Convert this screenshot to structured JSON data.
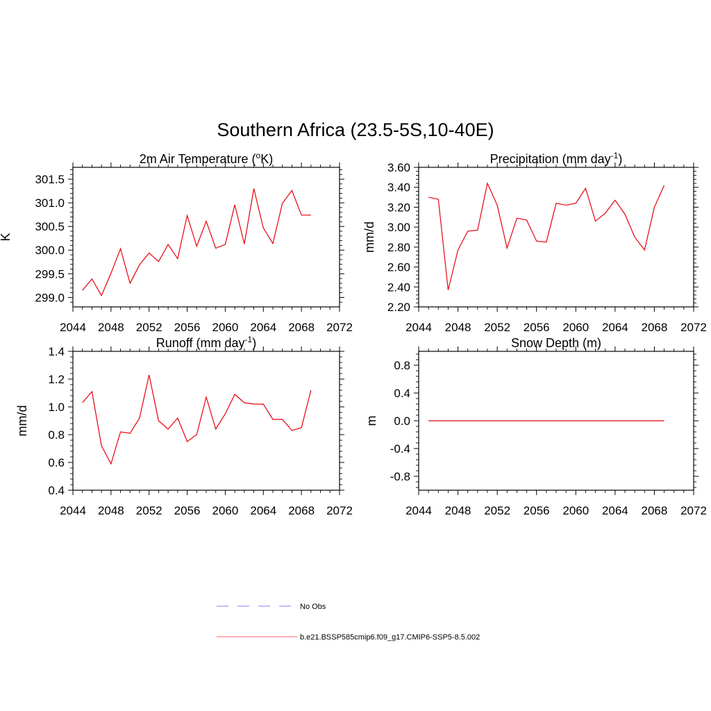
{
  "title": "Southern Africa (23.5-5S,10-40E)",
  "legend": [
    {
      "label": "No Obs",
      "color": "#9999ff",
      "style": "dashed"
    },
    {
      "label": "b.e21.BSSP585cmip6.f09_g17.CMIP6-SSP5-8.5.002",
      "color": "#ff8080",
      "style": "solid"
    }
  ],
  "chart_data": [
    {
      "type": "line",
      "title_main": "2m Air Temperature (",
      "title_sup_pre": "o",
      "title_after": "K)",
      "ylabel": "K",
      "xlim": [
        2044,
        2072
      ],
      "ylim": [
        298.8,
        301.75
      ],
      "xticks": [
        "2044",
        "2048",
        "2052",
        "2056",
        "2060",
        "2064",
        "2068",
        "2072"
      ],
      "yticks": [
        "299.0",
        "299.5",
        "300.0",
        "300.5",
        "301.0",
        "301.5"
      ],
      "x": [
        2045,
        2046,
        2047,
        2048,
        2049,
        2050,
        2051,
        2052,
        2053,
        2054,
        2055,
        2056,
        2057,
        2058,
        2059,
        2060,
        2061,
        2062,
        2063,
        2064,
        2065,
        2066,
        2067,
        2068,
        2069
      ],
      "series": [
        {
          "color": "#e8000b",
          "values": [
            299.15,
            299.39,
            299.04,
            299.51,
            300.03,
            299.3,
            299.69,
            299.94,
            299.76,
            300.12,
            299.82,
            300.73,
            300.08,
            300.61,
            300.04,
            300.12,
            300.96,
            300.13,
            301.3,
            300.47,
            300.14,
            300.99,
            301.26,
            300.74,
            300.74
          ]
        }
      ]
    },
    {
      "type": "line",
      "title_main": "Precipitation (mm day",
      "title_sup": "-1",
      "title_after": ")",
      "ylabel": "mm/d",
      "xlim": [
        2044,
        2072
      ],
      "ylim": [
        2.2,
        3.6
      ],
      "xticks": [
        "2044",
        "2048",
        "2052",
        "2056",
        "2060",
        "2064",
        "2068",
        "2072"
      ],
      "yticks": [
        "2.20",
        "2.40",
        "2.60",
        "2.80",
        "3.00",
        "3.20",
        "3.40",
        "3.60"
      ],
      "x": [
        2045,
        2046,
        2047,
        2048,
        2049,
        2050,
        2051,
        2052,
        2053,
        2054,
        2055,
        2056,
        2057,
        2058,
        2059,
        2060,
        2061,
        2062,
        2063,
        2064,
        2065,
        2066,
        2067,
        2068,
        2069
      ],
      "series": [
        {
          "color": "#e8000b",
          "values": [
            3.3,
            3.28,
            2.37,
            2.77,
            2.96,
            2.97,
            3.44,
            3.22,
            2.79,
            3.09,
            3.07,
            2.86,
            2.85,
            3.24,
            3.22,
            3.24,
            3.39,
            3.06,
            3.14,
            3.27,
            3.13,
            2.9,
            2.77,
            3.2,
            3.42
          ]
        }
      ]
    },
    {
      "type": "line",
      "title_main": "Runoff (mm day",
      "title_sup": "-1",
      "title_after": ")",
      "ylabel": "mm/d",
      "xlim": [
        2044,
        2072
      ],
      "ylim": [
        0.4,
        1.4
      ],
      "xticks": [
        "2044",
        "2048",
        "2052",
        "2056",
        "2060",
        "2064",
        "2068",
        "2072"
      ],
      "yticks": [
        "0.4",
        "0.6",
        "0.8",
        "1.0",
        "1.2",
        "1.4"
      ],
      "x": [
        2045,
        2046,
        2047,
        2048,
        2049,
        2050,
        2051,
        2052,
        2053,
        2054,
        2055,
        2056,
        2057,
        2058,
        2059,
        2060,
        2061,
        2062,
        2063,
        2064,
        2065,
        2066,
        2067,
        2068,
        2069
      ],
      "series": [
        {
          "color": "#e8000b",
          "values": [
            1.03,
            1.11,
            0.72,
            0.59,
            0.82,
            0.81,
            0.92,
            1.23,
            0.9,
            0.84,
            0.92,
            0.75,
            0.8,
            1.07,
            0.84,
            0.95,
            1.09,
            1.03,
            1.02,
            1.02,
            0.91,
            0.91,
            0.83,
            0.85,
            1.12
          ]
        }
      ]
    },
    {
      "type": "line",
      "title_main": "Snow Depth (m)",
      "ylabel": "m",
      "xlim": [
        2044,
        2072
      ],
      "ylim": [
        -1.0,
        1.0
      ],
      "xticks": [
        "2044",
        "2048",
        "2052",
        "2056",
        "2060",
        "2064",
        "2068",
        "2072"
      ],
      "yticks": [
        "-0.8",
        "-0.4",
        "0.0",
        "0.4",
        "0.8"
      ],
      "x": [
        2045,
        2046,
        2047,
        2048,
        2049,
        2050,
        2051,
        2052,
        2053,
        2054,
        2055,
        2056,
        2057,
        2058,
        2059,
        2060,
        2061,
        2062,
        2063,
        2064,
        2065,
        2066,
        2067,
        2068,
        2069
      ],
      "series": [
        {
          "color": "#e8000b",
          "values": [
            0,
            0,
            0,
            0,
            0,
            0,
            0,
            0,
            0,
            0,
            0,
            0,
            0,
            0,
            0,
            0,
            0,
            0,
            0,
            0,
            0,
            0,
            0,
            0,
            0
          ]
        }
      ]
    }
  ]
}
